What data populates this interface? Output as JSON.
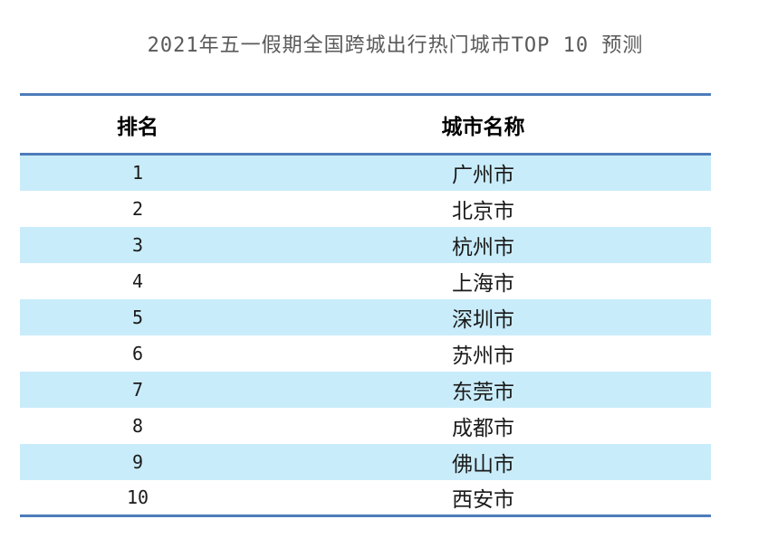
{
  "chart_data": {
    "type": "table",
    "title": "2021年五一假期全国跨城出行热门城市TOP 10 预测",
    "columns": [
      "排名",
      "城市名称"
    ],
    "rows": [
      [
        "1",
        "广州市"
      ],
      [
        "2",
        "北京市"
      ],
      [
        "3",
        "杭州市"
      ],
      [
        "4",
        "上海市"
      ],
      [
        "5",
        "深圳市"
      ],
      [
        "6",
        "苏州市"
      ],
      [
        "7",
        "东莞市"
      ],
      [
        "8",
        "成都市"
      ],
      [
        "9",
        "佛山市"
      ],
      [
        "10",
        "西安市"
      ]
    ],
    "layout": {
      "banded_rows": true,
      "band_pattern": "odd-rows-shaded",
      "rules": "horizontal-top-headerbottom-bottom"
    }
  },
  "colors": {
    "line_blue": "#4d7cba",
    "stripe_blue": "#c9ecfa",
    "title_gray": "#595959",
    "text_color": "#1a1a1a"
  }
}
